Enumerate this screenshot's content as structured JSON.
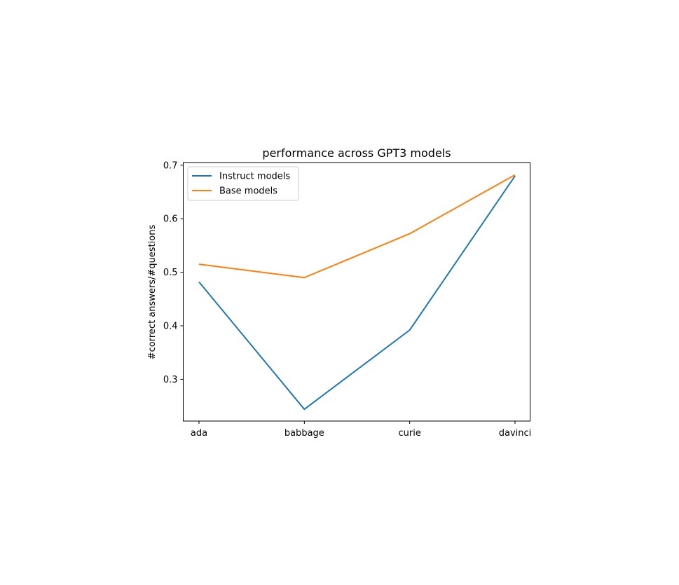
{
  "chart_data": {
    "type": "line",
    "title": "performance across GPT3 models",
    "xlabel": "",
    "ylabel": "#correct answers/#questions",
    "categories": [
      "ada",
      "babbage",
      "curie",
      "davinci"
    ],
    "series": [
      {
        "name": "Instruct models",
        "color": "#1f77b4",
        "values": [
          0.482,
          0.244,
          0.392,
          0.68
        ]
      },
      {
        "name": "Base models",
        "color": "#ff7f0e",
        "values": [
          0.515,
          0.49,
          0.572,
          0.682
        ]
      }
    ],
    "yticks": [
      0.3,
      0.4,
      0.5,
      0.6,
      0.7
    ],
    "ylim": [
      0.222,
      0.705
    ],
    "grid": false,
    "legend_position": "top-left"
  }
}
